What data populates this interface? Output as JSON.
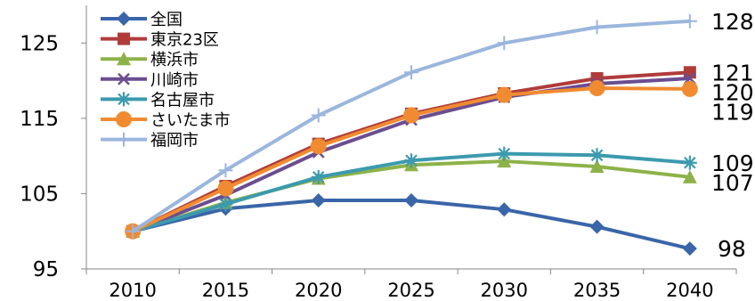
{
  "chart_data": {
    "type": "line",
    "x": [
      "2010",
      "2015",
      "2020",
      "2025",
      "2030",
      "2035",
      "2040"
    ],
    "ylim": [
      95,
      130
    ],
    "yticks": [
      95,
      105,
      115,
      125
    ],
    "legend_position": "top-left",
    "grid": false,
    "series": [
      {
        "name": "全国",
        "values": [
          100,
          103,
          104.1,
          104.1,
          102.9,
          100.6,
          97.7
        ],
        "end_label": "98",
        "color": "#3A65A8",
        "marker": "diamond"
      },
      {
        "name": "東京23区",
        "values": [
          100,
          106,
          111.6,
          115.6,
          118.3,
          120.3,
          121.1
        ],
        "end_label": "121",
        "color": "#B03C3A",
        "marker": "square"
      },
      {
        "name": "横浜市",
        "values": [
          100,
          103.8,
          107,
          108.8,
          109.3,
          108.6,
          107.2
        ],
        "end_label": "107",
        "color": "#8DB249",
        "marker": "triangle"
      },
      {
        "name": "川崎市",
        "values": [
          100,
          104.8,
          110.5,
          114.8,
          117.8,
          119.6,
          120.3
        ],
        "end_label": "120",
        "color": "#6A4D91",
        "marker": "x"
      },
      {
        "name": "名古屋市",
        "values": [
          100,
          103.6,
          107.2,
          109.4,
          110.3,
          110.1,
          109.1
        ],
        "end_label": "109",
        "color": "#3C9AAE",
        "marker": "star"
      },
      {
        "name": "さいたま市",
        "values": [
          100,
          105.7,
          111.3,
          115.4,
          118.1,
          119,
          118.9
        ],
        "end_label": "119",
        "color": "#F08B31",
        "marker": "circle"
      },
      {
        "name": "福岡市",
        "values": [
          100,
          108.1,
          115.4,
          121.1,
          125,
          127.1,
          127.9
        ],
        "end_label": "128",
        "color": "#9BB6DD",
        "marker": "plus"
      }
    ]
  }
}
